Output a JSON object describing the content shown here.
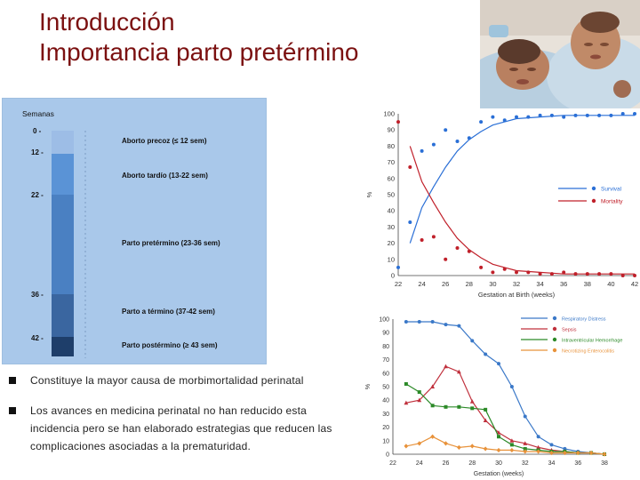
{
  "slide": {
    "title_line1": "Introducción",
    "title_line2": "Importancia parto pretérmino"
  },
  "timeline": {
    "header": "Semanas",
    "ticks": [
      "0",
      "12",
      "22",
      "36",
      "42"
    ],
    "labels": {
      "aborto_precoz": "Aborto precoz (≤ 12 sem)",
      "aborto_tardio": "Aborto tardío (13-22 sem)",
      "parto_pretermino": "Parto pretérmino (23-36 sem)",
      "parto_termino": "Parto a término (37-42 sem)",
      "parto_postermino": "Parto postérmino (≥ 43 sem)"
    },
    "colors": [
      "#9dbde6",
      "#5a93d6",
      "#4a80c2",
      "#3a66a0",
      "#1e3e6a"
    ]
  },
  "bullets": [
    "Constituye la mayor causa de morbimortalidad perinatal",
    "Los avances en medicina perinatal no han reducido esta incidencia pero se han elaborado estrategias que reducen las complicaciones asociadas a la prematuridad."
  ],
  "chart_data": [
    {
      "type": "line",
      "xlabel": "Gestation at Birth (weeks)",
      "ylabel": "%",
      "x_ticks": [
        22,
        24,
        26,
        28,
        30,
        32,
        34,
        36,
        38,
        40,
        42
      ],
      "y_ticks": [
        0,
        10,
        20,
        30,
        40,
        50,
        60,
        70,
        80,
        90,
        100
      ],
      "xlim": [
        22,
        42
      ],
      "ylim": [
        0,
        100
      ],
      "legend_position": "right",
      "series": [
        {
          "name": "Survival",
          "color": "#2a6fd6",
          "points": [
            [
              22,
              5
            ],
            [
              23,
              33
            ],
            [
              24,
              77
            ],
            [
              25,
              81
            ],
            [
              26,
              90
            ],
            [
              27,
              83
            ],
            [
              28,
              85
            ],
            [
              29,
              95
            ],
            [
              30,
              98
            ],
            [
              31,
              96
            ],
            [
              32,
              98
            ],
            [
              33,
              98
            ],
            [
              34,
              99
            ],
            [
              35,
              99
            ],
            [
              36,
              98
            ],
            [
              37,
              99
            ],
            [
              38,
              99
            ],
            [
              39,
              99
            ],
            [
              40,
              99
            ],
            [
              41,
              100
            ],
            [
              42,
              100
            ]
          ],
          "curve": [
            [
              23,
              20
            ],
            [
              24,
              42
            ],
            [
              25,
              55
            ],
            [
              26,
              67
            ],
            [
              27,
              77
            ],
            [
              28,
              84
            ],
            [
              29,
              89
            ],
            [
              30,
              93
            ],
            [
              31,
              95
            ],
            [
              32,
              97
            ],
            [
              34,
              98
            ],
            [
              36,
              99
            ],
            [
              38,
              99
            ],
            [
              40,
              99
            ],
            [
              42,
              99
            ]
          ]
        },
        {
          "name": "Mortality",
          "color": "#c0202a",
          "points": [
            [
              22,
              95
            ],
            [
              23,
              67
            ],
            [
              24,
              22
            ],
            [
              25,
              24
            ],
            [
              26,
              10
            ],
            [
              27,
              17
            ],
            [
              28,
              15
            ],
            [
              29,
              5
            ],
            [
              30,
              2
            ],
            [
              31,
              4
            ],
            [
              32,
              2
            ],
            [
              33,
              2
            ],
            [
              34,
              1
            ],
            [
              35,
              1
            ],
            [
              36,
              2
            ],
            [
              37,
              1
            ],
            [
              38,
              1
            ],
            [
              39,
              1
            ],
            [
              40,
              1
            ],
            [
              41,
              0
            ],
            [
              42,
              0
            ]
          ],
          "curve": [
            [
              23,
              80
            ],
            [
              24,
              58
            ],
            [
              25,
              45
            ],
            [
              26,
              33
            ],
            [
              27,
              23
            ],
            [
              28,
              16
            ],
            [
              29,
              11
            ],
            [
              30,
              7
            ],
            [
              31,
              5
            ],
            [
              32,
              3
            ],
            [
              34,
              2
            ],
            [
              36,
              1
            ],
            [
              38,
              1
            ],
            [
              40,
              1
            ],
            [
              42,
              1
            ]
          ]
        }
      ]
    },
    {
      "type": "line",
      "xlabel": "Gestation (weeks)",
      "ylabel": "%",
      "x_ticks": [
        22,
        24,
        26,
        28,
        30,
        32,
        34,
        36,
        38
      ],
      "y_ticks": [
        0,
        10,
        20,
        30,
        40,
        50,
        60,
        70,
        80,
        90,
        100
      ],
      "xlim": [
        22,
        38
      ],
      "ylim": [
        0,
        100
      ],
      "legend_position": "top-right",
      "series": [
        {
          "name": "Respiratory Distress",
          "color": "#3a78c8",
          "marker": "circle",
          "points": [
            [
              23,
              98
            ],
            [
              24,
              98
            ],
            [
              25,
              98
            ],
            [
              26,
              96
            ],
            [
              27,
              95
            ],
            [
              28,
              84
            ],
            [
              29,
              74
            ],
            [
              30,
              67
            ],
            [
              31,
              50
            ],
            [
              32,
              28
            ],
            [
              33,
              13
            ],
            [
              34,
              7
            ],
            [
              35,
              4
            ],
            [
              36,
              2
            ],
            [
              37,
              1
            ],
            [
              38,
              0
            ]
          ]
        },
        {
          "name": "Sepsis",
          "color": "#c0303c",
          "marker": "triangle",
          "points": [
            [
              23,
              38
            ],
            [
              24,
              40
            ],
            [
              25,
              50
            ],
            [
              26,
              65
            ],
            [
              27,
              61
            ],
            [
              28,
              39
            ],
            [
              29,
              25
            ],
            [
              30,
              16
            ],
            [
              31,
              10
            ],
            [
              32,
              8
            ],
            [
              33,
              5
            ],
            [
              34,
              3
            ],
            [
              35,
              2
            ],
            [
              36,
              1
            ],
            [
              37,
              1
            ],
            [
              38,
              0
            ]
          ]
        },
        {
          "name": "Intraventricular Hemorrhage",
          "color": "#2c8a28",
          "marker": "square",
          "points": [
            [
              23,
              52
            ],
            [
              24,
              46
            ],
            [
              25,
              36
            ],
            [
              26,
              35
            ],
            [
              27,
              35
            ],
            [
              28,
              34
            ],
            [
              29,
              33
            ],
            [
              30,
              13
            ],
            [
              31,
              7
            ],
            [
              32,
              4
            ],
            [
              33,
              3
            ],
            [
              34,
              2
            ],
            [
              35,
              2
            ],
            [
              36,
              1
            ],
            [
              37,
              1
            ],
            [
              38,
              0
            ]
          ]
        },
        {
          "name": "Necrotizing Enterocolitis",
          "color": "#e8923a",
          "marker": "diamond",
          "points": [
            [
              23,
              6
            ],
            [
              24,
              8
            ],
            [
              25,
              13
            ],
            [
              26,
              8
            ],
            [
              27,
              5
            ],
            [
              28,
              6
            ],
            [
              29,
              4
            ],
            [
              30,
              3
            ],
            [
              31,
              3
            ],
            [
              32,
              2
            ],
            [
              33,
              2
            ],
            [
              34,
              1
            ],
            [
              35,
              1
            ],
            [
              36,
              1
            ],
            [
              37,
              1
            ],
            [
              38,
              0
            ]
          ]
        }
      ]
    }
  ]
}
